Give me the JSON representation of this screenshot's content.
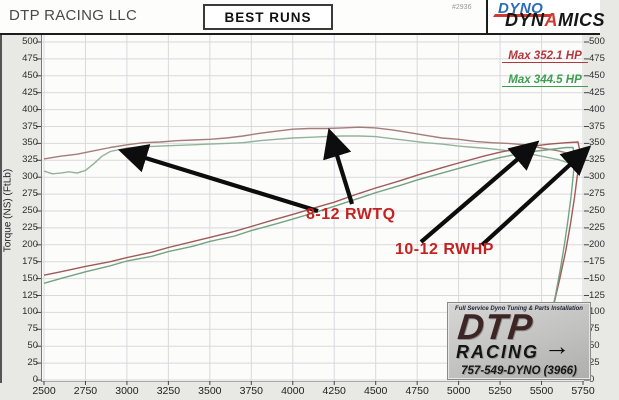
{
  "header": {
    "company": "DTP RACING LLC",
    "run_label": "BEST RUNS",
    "run_number": "#2936",
    "logo_word1": "DYNO",
    "logo_word2_pre": "DYN",
    "logo_word2_a": "A",
    "logo_word2_post": "MICS"
  },
  "chart_data": {
    "type": "line",
    "title": "BEST RUNS",
    "xlabel": "",
    "ylabel": "Torque (NS) (FtLb)",
    "x_axis": {
      "min": 2500,
      "max": 5750,
      "ticks": [
        2500,
        2750,
        3000,
        3250,
        3500,
        3750,
        4000,
        4250,
        4500,
        4750,
        5000,
        5250,
        5500,
        5750
      ]
    },
    "y_axis_left": {
      "min": 0,
      "max": 500,
      "ticks": [
        500,
        475,
        450,
        425,
        400,
        375,
        350,
        325,
        300,
        275,
        250,
        225,
        200,
        175,
        150,
        125,
        100,
        75,
        50,
        25,
        0
      ]
    },
    "y_axis_right": {
      "min": 0,
      "max": 500,
      "note": "labels clipped at image edge",
      "ticks": [
        500,
        475,
        450,
        425,
        400,
        375,
        350,
        325,
        300,
        275,
        250,
        225,
        200,
        175,
        150,
        125,
        100,
        75,
        50,
        25,
        0
      ]
    },
    "grid": true,
    "legend_position": "top-right",
    "legend": [
      {
        "text": "Max 352.1 HP",
        "color": "#b2383c"
      },
      {
        "text": "Max 344.5 HP",
        "color": "#3d9e52"
      }
    ],
    "series": [
      {
        "name": "rwtq-red-run",
        "color": "#a57d79",
        "width": 1.4,
        "points": [
          [
            2500,
            327
          ],
          [
            2600,
            331
          ],
          [
            2700,
            334
          ],
          [
            2800,
            339
          ],
          [
            2900,
            344
          ],
          [
            3000,
            348
          ],
          [
            3100,
            351
          ],
          [
            3200,
            352
          ],
          [
            3300,
            354
          ],
          [
            3400,
            355
          ],
          [
            3500,
            356
          ],
          [
            3600,
            358
          ],
          [
            3700,
            361
          ],
          [
            3800,
            365
          ],
          [
            3900,
            368
          ],
          [
            4000,
            371
          ],
          [
            4100,
            372
          ],
          [
            4200,
            372
          ],
          [
            4300,
            373
          ],
          [
            4400,
            374
          ],
          [
            4500,
            373
          ],
          [
            4600,
            370
          ],
          [
            4700,
            366
          ],
          [
            4800,
            362
          ],
          [
            4900,
            358
          ],
          [
            5000,
            356
          ],
          [
            5100,
            353
          ],
          [
            5200,
            351
          ],
          [
            5300,
            350
          ],
          [
            5400,
            348
          ],
          [
            5500,
            343
          ],
          [
            5600,
            339
          ],
          [
            5700,
            333
          ],
          [
            5750,
            329
          ]
        ]
      },
      {
        "name": "rwtq-green-run",
        "color": "#93b29c",
        "width": 1.4,
        "points": [
          [
            2500,
            309
          ],
          [
            2550,
            305
          ],
          [
            2600,
            306
          ],
          [
            2650,
            308
          ],
          [
            2700,
            306
          ],
          [
            2750,
            310
          ],
          [
            2800,
            320
          ],
          [
            2850,
            331
          ],
          [
            2900,
            338
          ],
          [
            3000,
            343
          ],
          [
            3100,
            345
          ],
          [
            3200,
            346
          ],
          [
            3300,
            347
          ],
          [
            3400,
            348
          ],
          [
            3500,
            349
          ],
          [
            3600,
            350
          ],
          [
            3700,
            351
          ],
          [
            3800,
            354
          ],
          [
            3900,
            356
          ],
          [
            4000,
            358
          ],
          [
            4100,
            359
          ],
          [
            4200,
            360
          ],
          [
            4300,
            361
          ],
          [
            4400,
            361
          ],
          [
            4500,
            360
          ],
          [
            4600,
            357
          ],
          [
            4700,
            354
          ],
          [
            4800,
            351
          ],
          [
            4900,
            349
          ],
          [
            5000,
            346
          ],
          [
            5100,
            344
          ],
          [
            5200,
            342
          ],
          [
            5300,
            339
          ],
          [
            5400,
            336
          ],
          [
            5500,
            331
          ],
          [
            5600,
            326
          ],
          [
            5700,
            318
          ],
          [
            5740,
            308
          ]
        ]
      },
      {
        "name": "rwhp-red-run",
        "color": "#a05a58",
        "width": 1.4,
        "max_hp": "352.1",
        "points": [
          [
            2500,
            155
          ],
          [
            2600,
            160
          ],
          [
            2750,
            168
          ],
          [
            2900,
            175
          ],
          [
            3000,
            181
          ],
          [
            3150,
            189
          ],
          [
            3250,
            196
          ],
          [
            3400,
            205
          ],
          [
            3500,
            211
          ],
          [
            3650,
            220
          ],
          [
            3750,
            227
          ],
          [
            3900,
            238
          ],
          [
            4000,
            245
          ],
          [
            4150,
            256
          ],
          [
            4250,
            263
          ],
          [
            4400,
            276
          ],
          [
            4500,
            284
          ],
          [
            4650,
            295
          ],
          [
            4750,
            303
          ],
          [
            4900,
            314
          ],
          [
            5000,
            321
          ],
          [
            5150,
            331
          ],
          [
            5250,
            337
          ],
          [
            5350,
            342
          ],
          [
            5450,
            346
          ],
          [
            5550,
            349
          ],
          [
            5650,
            351
          ],
          [
            5720,
            352
          ],
          [
            5730,
            340
          ],
          [
            5720,
            310
          ],
          [
            5700,
            272
          ],
          [
            5675,
            232
          ],
          [
            5645,
            190
          ],
          [
            5610,
            150
          ],
          [
            5580,
            118
          ],
          [
            5560,
            100
          ]
        ]
      },
      {
        "name": "rwhp-green-run",
        "color": "#74a383",
        "width": 1.4,
        "max_hp": "344.5",
        "points": [
          [
            2500,
            143
          ],
          [
            2600,
            150
          ],
          [
            2750,
            160
          ],
          [
            2900,
            169
          ],
          [
            3000,
            176
          ],
          [
            3150,
            183
          ],
          [
            3250,
            190
          ],
          [
            3400,
            198
          ],
          [
            3500,
            205
          ],
          [
            3650,
            213
          ],
          [
            3750,
            221
          ],
          [
            3900,
            231
          ],
          [
            4000,
            238
          ],
          [
            4150,
            249
          ],
          [
            4250,
            257
          ],
          [
            4400,
            269
          ],
          [
            4500,
            277
          ],
          [
            4650,
            288
          ],
          [
            4750,
            296
          ],
          [
            4900,
            306
          ],
          [
            5000,
            313
          ],
          [
            5150,
            323
          ],
          [
            5250,
            329
          ],
          [
            5350,
            334
          ],
          [
            5450,
            338
          ],
          [
            5550,
            341
          ],
          [
            5650,
            344
          ],
          [
            5690,
            344
          ],
          [
            5700,
            332
          ],
          [
            5692,
            305
          ],
          [
            5678,
            272
          ],
          [
            5660,
            238
          ],
          [
            5638,
            200
          ],
          [
            5612,
            162
          ],
          [
            5585,
            126
          ],
          [
            5565,
            104
          ]
        ]
      }
    ],
    "annotations": [
      {
        "text": "8-12 RWTQ",
        "x": 306,
        "y": 206,
        "arrows": [
          {
            "from": [
              318,
              211
            ],
            "to": [
              126,
              152
            ]
          },
          {
            "from": [
              352,
              204
            ],
            "to": [
              331,
              136
            ]
          }
        ]
      },
      {
        "text": "10-12 RWHP",
        "x": 395,
        "y": 241,
        "arrows": [
          {
            "from": [
              421,
              242
            ],
            "to": [
              533,
              146
            ]
          },
          {
            "from": [
              482,
              245
            ],
            "to": [
              585,
              151
            ]
          }
        ]
      }
    ]
  },
  "watermark": {
    "tagline": "Full Service Dyno Tuning & Parts Installation",
    "line1": "DTP",
    "line2": "RACING",
    "arrow": "→",
    "phone": "757-549-DYNO (3966)"
  }
}
